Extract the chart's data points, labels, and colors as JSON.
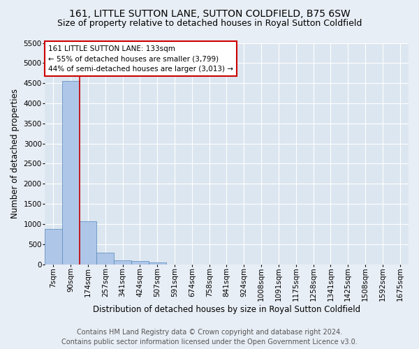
{
  "title": "161, LITTLE SUTTON LANE, SUTTON COLDFIELD, B75 6SW",
  "subtitle": "Size of property relative to detached houses in Royal Sutton Coldfield",
  "xlabel": "Distribution of detached houses by size in Royal Sutton Coldfield",
  "ylabel": "Number of detached properties",
  "footer_line1": "Contains HM Land Registry data © Crown copyright and database right 2024.",
  "footer_line2": "Contains public sector information licensed under the Open Government Licence v3.0.",
  "bin_labels": [
    "7sqm",
    "90sqm",
    "174sqm",
    "257sqm",
    "341sqm",
    "424sqm",
    "507sqm",
    "591sqm",
    "674sqm",
    "758sqm",
    "841sqm",
    "924sqm",
    "1008sqm",
    "1091sqm",
    "1175sqm",
    "1258sqm",
    "1341sqm",
    "1425sqm",
    "1508sqm",
    "1592sqm",
    "1675sqm"
  ],
  "bar_values": [
    880,
    4560,
    1060,
    285,
    90,
    75,
    50,
    0,
    0,
    0,
    0,
    0,
    0,
    0,
    0,
    0,
    0,
    0,
    0,
    0,
    0
  ],
  "bar_color": "#aec6e8",
  "bar_edge_color": "#5588bb",
  "property_line_color": "#cc0000",
  "annotation_text": "161 LITTLE SUTTON LANE: 133sqm\n← 55% of detached houses are smaller (3,799)\n44% of semi-detached houses are larger (3,013) →",
  "annotation_box_color": "#ffffff",
  "annotation_box_edge_color": "#cc0000",
  "ylim": [
    0,
    5500
  ],
  "yticks": [
    0,
    500,
    1000,
    1500,
    2000,
    2500,
    3000,
    3500,
    4000,
    4500,
    5000,
    5500
  ],
  "background_color": "#e8eef5",
  "plot_background_color": "#dce6f0",
  "grid_color": "#ffffff",
  "title_fontsize": 10,
  "subtitle_fontsize": 9,
  "label_fontsize": 8.5,
  "tick_fontsize": 7.5,
  "footer_fontsize": 7,
  "annotation_fontsize": 7.5
}
